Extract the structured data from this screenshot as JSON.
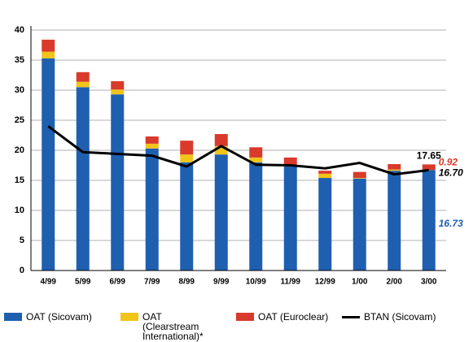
{
  "chart_data": {
    "type": "bar",
    "categories": [
      "4/99",
      "5/99",
      "6/99",
      "7/99",
      "8/99",
      "9/99",
      "10/99",
      "11/99",
      "12/99",
      "1/00",
      "2/00",
      "3/00"
    ],
    "series": [
      {
        "name": "OAT (Sicovam)",
        "color": "#1f5fb0",
        "type": "bar",
        "values": [
          35.3,
          30.5,
          29.3,
          20.3,
          18.0,
          19.3,
          18.0,
          17.3,
          15.4,
          15.3,
          16.6,
          16.73
        ]
      },
      {
        "name": "OAT (Clearstream International)*",
        "color": "#f0c419",
        "type": "bar",
        "values": [
          1.1,
          0.9,
          0.8,
          0.8,
          1.3,
          1.4,
          0.8,
          0.3,
          0.7,
          0.1,
          0.2,
          0
        ]
      },
      {
        "name": "OAT (Euroclear)",
        "color": "#d93a2b",
        "type": "bar",
        "values": [
          2.0,
          1.6,
          1.4,
          1.2,
          2.3,
          2.0,
          1.7,
          1.2,
          0.5,
          1.0,
          0.9,
          0.92
        ]
      },
      {
        "name": "BTAN (Sicovam)",
        "color": "#000000",
        "type": "line",
        "values": [
          24.0,
          19.7,
          19.4,
          19.1,
          17.3,
          20.7,
          17.6,
          17.5,
          17.0,
          17.9,
          16.0,
          16.7
        ],
        "value_labels": [
          null,
          null,
          null,
          null,
          null,
          null,
          null,
          null,
          null,
          null,
          null,
          "16.70"
        ]
      }
    ],
    "annotations": [
      {
        "text": "17.65"
      }
    ],
    "ylim": [
      0,
      40
    ],
    "yticks": [
      0,
      5,
      10,
      15,
      20,
      25,
      30,
      35,
      40
    ],
    "grid": true
  }
}
